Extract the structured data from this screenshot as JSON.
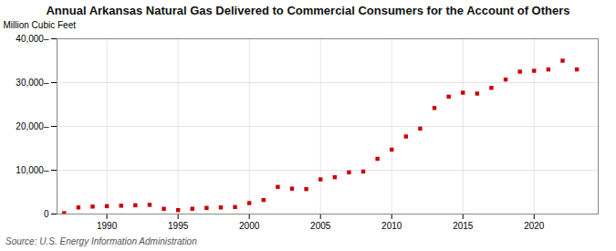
{
  "chart_data": {
    "type": "scatter",
    "title": "Annual Arkansas Natural Gas Delivered to Commercial Consumers for the Account of Others",
    "ylabel": "Million Cubic Feet",
    "source": "Source: U.S. Energy Information Administration",
    "x": [
      1987,
      1988,
      1989,
      1990,
      1991,
      1992,
      1993,
      1994,
      1995,
      1996,
      1997,
      1998,
      1999,
      2000,
      2001,
      2002,
      2003,
      2004,
      2005,
      2006,
      2007,
      2008,
      2009,
      2010,
      2011,
      2012,
      2013,
      2014,
      2015,
      2016,
      2017,
      2018,
      2019,
      2020,
      2021,
      2022,
      2023
    ],
    "values": [
      200,
      1500,
      1700,
      1800,
      1900,
      2000,
      2100,
      1200,
      900,
      1200,
      1400,
      1500,
      1600,
      2500,
      3200,
      6200,
      5800,
      5700,
      7900,
      8400,
      9500,
      9700,
      12600,
      14700,
      17700,
      19500,
      24200,
      26800,
      27700,
      27500,
      28800,
      30700,
      32500,
      32700,
      33000,
      35000,
      33000
    ],
    "color": "#cc0000",
    "marker": "square",
    "xlim": [
      1986.5,
      2024.5
    ],
    "xticks": [
      1990,
      1995,
      2000,
      2005,
      2010,
      2015,
      2020
    ],
    "ylim": [
      0,
      40000
    ],
    "yticks": [
      0,
      {
        "value": 10000,
        "label": "10,000–"
      },
      {
        "value": 20000,
        "label": "20,000–"
      },
      {
        "value": 30000,
        "label": "30,000–"
      },
      {
        "value": 40000,
        "label": "40,000–"
      }
    ],
    "grid": true
  }
}
